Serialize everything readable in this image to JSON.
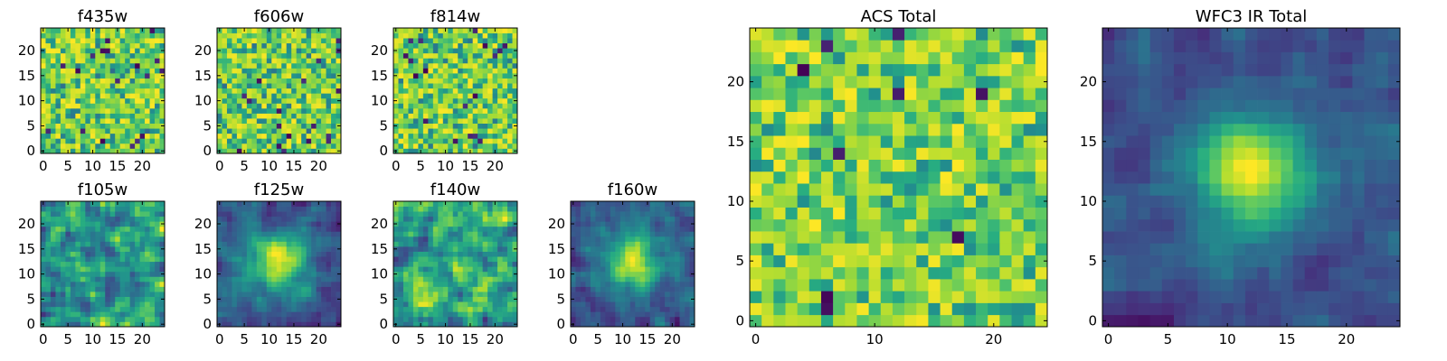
{
  "chart_data": [
    {
      "type": "heatmap",
      "title": "f435w",
      "grid_size": [
        25,
        25
      ],
      "xlim": [
        -0.5,
        24.5
      ],
      "ylim": [
        -0.5,
        24.5
      ],
      "xticks": [
        0,
        5,
        10,
        15,
        20
      ],
      "yticks": [
        0,
        5,
        10,
        15,
        20
      ],
      "colormap": "viridis",
      "pattern": "noise",
      "seed": 11
    },
    {
      "type": "heatmap",
      "title": "f606w",
      "grid_size": [
        25,
        25
      ],
      "xlim": [
        -0.5,
        24.5
      ],
      "ylim": [
        -0.5,
        24.5
      ],
      "xticks": [
        0,
        5,
        10,
        15,
        20
      ],
      "yticks": [
        0,
        5,
        10,
        15,
        20
      ],
      "colormap": "viridis",
      "pattern": "noise",
      "seed": 23
    },
    {
      "type": "heatmap",
      "title": "f814w",
      "grid_size": [
        25,
        25
      ],
      "xlim": [
        -0.5,
        24.5
      ],
      "ylim": [
        -0.5,
        24.5
      ],
      "xticks": [
        0,
        5,
        10,
        15,
        20
      ],
      "yticks": [
        0,
        5,
        10,
        15,
        20
      ],
      "colormap": "viridis",
      "pattern": "noise",
      "seed": 37
    },
    {
      "type": "heatmap",
      "title": "f105w",
      "grid_size": [
        25,
        25
      ],
      "xlim": [
        -0.5,
        24.5
      ],
      "ylim": [
        -0.5,
        24.5
      ],
      "xticks": [
        0,
        5,
        10,
        15,
        20
      ],
      "yticks": [
        0,
        5,
        10,
        15,
        20
      ],
      "colormap": "viridis",
      "pattern": "smooth",
      "seed": 41
    },
    {
      "type": "heatmap",
      "title": "f125w",
      "grid_size": [
        25,
        25
      ],
      "xlim": [
        -0.5,
        24.5
      ],
      "ylim": [
        -0.5,
        24.5
      ],
      "xticks": [
        0,
        5,
        10,
        15,
        20
      ],
      "yticks": [
        0,
        5,
        10,
        15,
        20
      ],
      "colormap": "viridis",
      "pattern": "source",
      "seed": 53
    },
    {
      "type": "heatmap",
      "title": "f140w",
      "grid_size": [
        25,
        25
      ],
      "xlim": [
        -0.5,
        24.5
      ],
      "ylim": [
        -0.5,
        24.5
      ],
      "xticks": [
        0,
        5,
        10,
        15,
        20
      ],
      "yticks": [
        0,
        5,
        10,
        15,
        20
      ],
      "colormap": "viridis",
      "pattern": "smooth",
      "seed": 67
    },
    {
      "type": "heatmap",
      "title": "f160w",
      "grid_size": [
        25,
        25
      ],
      "xlim": [
        -0.5,
        24.5
      ],
      "ylim": [
        -0.5,
        24.5
      ],
      "xticks": [
        0,
        5,
        10,
        15,
        20
      ],
      "yticks": [
        0,
        5,
        10,
        15,
        20
      ],
      "colormap": "viridis",
      "pattern": "source",
      "seed": 79
    },
    {
      "type": "heatmap",
      "title": "ACS Total",
      "grid_size": [
        25,
        25
      ],
      "xlim": [
        -0.5,
        24.5
      ],
      "ylim": [
        -0.5,
        24.5
      ],
      "xticks": [
        0,
        10,
        20
      ],
      "yticks": [
        0,
        5,
        10,
        15,
        20
      ],
      "colormap": "viridis",
      "pattern": "noise-bright",
      "seed": 83
    },
    {
      "type": "heatmap",
      "title": "WFC3 IR Total",
      "grid_size": [
        25,
        25
      ],
      "xlim": [
        -0.5,
        24.5
      ],
      "ylim": [
        -0.5,
        24.5
      ],
      "xticks": [
        0,
        5,
        10,
        15,
        20
      ],
      "yticks": [
        0,
        5,
        10,
        15,
        20
      ],
      "colormap": "viridis",
      "pattern": "source-strong",
      "seed": 97
    }
  ]
}
